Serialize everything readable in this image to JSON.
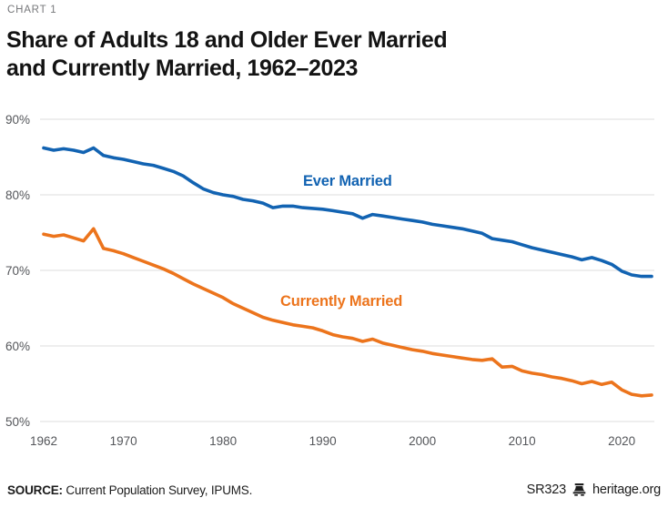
{
  "page": {
    "eyebrow": "CHART 1",
    "title_line1": "Share of Adults 18 and Older Ever Married",
    "title_line2": "and Currently Married, 1962–2023"
  },
  "chart_data": {
    "type": "line",
    "title": "Share of Adults 18 and Older Ever Married and Currently Married, 1962–2023",
    "xlabel": "",
    "ylabel": "",
    "ylim": [
      50,
      90
    ],
    "y_ticks": [
      90,
      80,
      70,
      60,
      50
    ],
    "y_tick_suffix": "%",
    "x_ticks": [
      1962,
      1970,
      1980,
      1990,
      2000,
      2010,
      2020
    ],
    "grid": "horizontal",
    "legend_position": "inline-annotations",
    "x": [
      1962,
      1963,
      1964,
      1965,
      1966,
      1967,
      1968,
      1969,
      1970,
      1971,
      1972,
      1973,
      1974,
      1975,
      1976,
      1977,
      1978,
      1979,
      1980,
      1981,
      1982,
      1983,
      1984,
      1985,
      1986,
      1987,
      1988,
      1989,
      1990,
      1991,
      1992,
      1993,
      1994,
      1995,
      1996,
      1997,
      1998,
      1999,
      2000,
      2001,
      2002,
      2003,
      2004,
      2005,
      2006,
      2007,
      2008,
      2009,
      2010,
      2011,
      2012,
      2013,
      2014,
      2015,
      2016,
      2017,
      2018,
      2019,
      2020,
      2021,
      2022,
      2023
    ],
    "series": [
      {
        "name": "Ever Married",
        "color": "#1263b2",
        "values": [
          86.2,
          85.9,
          86.1,
          85.9,
          85.6,
          86.2,
          85.2,
          84.9,
          84.7,
          84.4,
          84.1,
          83.9,
          83.5,
          83.1,
          82.5,
          81.6,
          80.8,
          80.3,
          80.0,
          79.8,
          79.4,
          79.2,
          78.9,
          78.3,
          78.5,
          78.5,
          78.3,
          78.2,
          78.1,
          77.9,
          77.7,
          77.5,
          76.9,
          77.4,
          77.2,
          77.0,
          76.8,
          76.6,
          76.4,
          76.1,
          75.9,
          75.7,
          75.5,
          75.2,
          74.9,
          74.2,
          74.0,
          73.8,
          73.4,
          73.0,
          72.7,
          72.4,
          72.1,
          71.8,
          71.4,
          71.7,
          71.3,
          70.8,
          69.9,
          69.4,
          69.2,
          69.2
        ]
      },
      {
        "name": "Currently Married",
        "color": "#ec741c",
        "values": [
          74.8,
          74.5,
          74.7,
          74.3,
          73.9,
          75.5,
          72.9,
          72.6,
          72.2,
          71.7,
          71.2,
          70.7,
          70.2,
          69.6,
          68.9,
          68.2,
          67.6,
          67.0,
          66.4,
          65.6,
          65.0,
          64.4,
          63.8,
          63.4,
          63.1,
          62.8,
          62.6,
          62.4,
          62.0,
          61.5,
          61.2,
          61.0,
          60.6,
          60.9,
          60.4,
          60.1,
          59.8,
          59.5,
          59.3,
          59.0,
          58.8,
          58.6,
          58.4,
          58.2,
          58.1,
          58.3,
          57.2,
          57.3,
          56.7,
          56.4,
          56.2,
          55.9,
          55.7,
          55.4,
          55.0,
          55.3,
          54.9,
          55.2,
          54.2,
          53.6,
          53.4,
          53.5
        ]
      }
    ]
  },
  "footer": {
    "source_label": "SOURCE:",
    "source_text": "Current Population Survey, IPUMS.",
    "report_id": "SR323",
    "site": "heritage.org",
    "logo_icon": "liberty-bell-icon"
  }
}
